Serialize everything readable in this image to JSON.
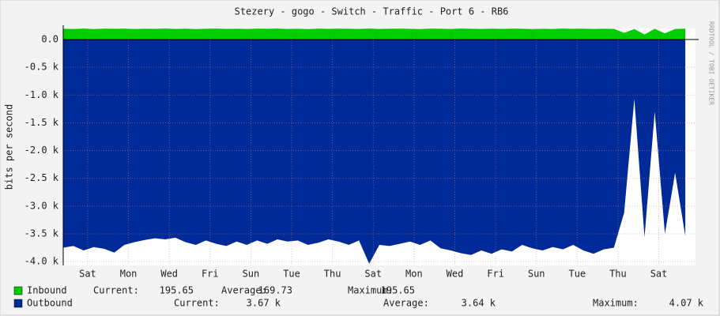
{
  "chart_data": {
    "type": "area",
    "title": "Stezery - gogo - Switch - Traffic - Port  6 - RB6",
    "y_label": "bits per second",
    "side_text": "RRDTOOL / TOBI OETIKER",
    "xlim": [
      0,
      31
    ],
    "ylim": [
      -4070,
      200
    ],
    "xticks": [
      {
        "value": 1.2,
        "label": "Sat"
      },
      {
        "value": 3.2,
        "label": "Mon"
      },
      {
        "value": 5.2,
        "label": "Wed"
      },
      {
        "value": 7.2,
        "label": "Fri"
      },
      {
        "value": 9.2,
        "label": "Sun"
      },
      {
        "value": 11.2,
        "label": "Tue"
      },
      {
        "value": 13.2,
        "label": "Thu"
      },
      {
        "value": 15.2,
        "label": "Sat"
      },
      {
        "value": 17.2,
        "label": "Mon"
      },
      {
        "value": 19.2,
        "label": "Wed"
      },
      {
        "value": 21.2,
        "label": "Fri"
      },
      {
        "value": 23.2,
        "label": "Sun"
      },
      {
        "value": 25.2,
        "label": "Tue"
      },
      {
        "value": 27.2,
        "label": "Thu"
      },
      {
        "value": 29.2,
        "label": "Sat"
      }
    ],
    "yticks": [
      {
        "value": 0,
        "label": "0.0"
      },
      {
        "value": -500,
        "label": "-0.5 k"
      },
      {
        "value": -1000,
        "label": "-1.0 k"
      },
      {
        "value": -1500,
        "label": "-1.5 k"
      },
      {
        "value": -2000,
        "label": "-2.0 k"
      },
      {
        "value": -2500,
        "label": "-2.5 k"
      },
      {
        "value": -3000,
        "label": "-3.0 k"
      },
      {
        "value": -3500,
        "label": "-3.5 k"
      },
      {
        "value": -4000,
        "label": "-4.0 k"
      }
    ],
    "grid": true,
    "x": [
      0,
      0.5,
      1,
      1.5,
      2,
      2.5,
      3,
      3.5,
      4,
      4.5,
      5,
      5.5,
      6,
      6.5,
      7,
      7.5,
      8,
      8.5,
      9,
      9.5,
      10,
      10.5,
      11,
      11.5,
      12,
      12.5,
      13,
      13.5,
      14,
      14.5,
      15,
      15.5,
      16,
      16.5,
      17,
      17.5,
      18,
      18.5,
      19,
      19.5,
      20,
      20.5,
      21,
      21.5,
      22,
      22.5,
      23,
      23.5,
      24,
      24.5,
      25,
      25.5,
      26,
      26.5,
      27,
      27.5,
      28,
      28.5,
      29,
      29.5,
      30,
      30.5
    ],
    "series": [
      {
        "name": "Inbound",
        "color": "#00cc00",
        "values": [
          195,
          192,
          198,
          190,
          196,
          194,
          197,
          191,
          195,
          193,
          198,
          192,
          196,
          190,
          194,
          197,
          193,
          195,
          191,
          196,
          194,
          198,
          192,
          195,
          190,
          197,
          193,
          196,
          194,
          192,
          198,
          191,
          195,
          197,
          193,
          190,
          196,
          194,
          192,
          198,
          195,
          191,
          197,
          193,
          196,
          194,
          190,
          195,
          192,
          198,
          194,
          196,
          191,
          195,
          193,
          120,
          190,
          90,
          195,
          110,
          192,
          196
        ],
        "stats": [
          {
            "name": "Current:",
            "value": 195.65
          },
          {
            "name": "Average:",
            "value": 169.73
          },
          {
            "name": "Maximum:",
            "value": 195.65
          }
        ]
      },
      {
        "name": "Outbound",
        "color": "#002a97",
        "values": [
          -3750,
          -3720,
          -3800,
          -3740,
          -3770,
          -3840,
          -3700,
          -3650,
          -3610,
          -3580,
          -3600,
          -3570,
          -3650,
          -3700,
          -3620,
          -3680,
          -3720,
          -3640,
          -3700,
          -3620,
          -3680,
          -3600,
          -3640,
          -3620,
          -3700,
          -3660,
          -3600,
          -3640,
          -3700,
          -3620,
          -4040,
          -3700,
          -3720,
          -3680,
          -3640,
          -3700,
          -3620,
          -3760,
          -3800,
          -3850,
          -3880,
          -3800,
          -3860,
          -3780,
          -3820,
          -3700,
          -3760,
          -3800,
          -3740,
          -3780,
          -3700,
          -3800,
          -3860,
          -3780,
          -3750,
          -3120,
          -1070,
          -3560,
          -1300,
          -3500,
          -2400,
          -3540
        ],
        "stats": [
          {
            "name": "Current:",
            "value": 3670,
            "value_label": "3.67 k"
          },
          {
            "name": "Average:",
            "value": 3640,
            "value_label": "3.64 k"
          },
          {
            "name": "Maximum:",
            "value": 4070,
            "value_label": "4.07 k"
          }
        ]
      }
    ]
  }
}
